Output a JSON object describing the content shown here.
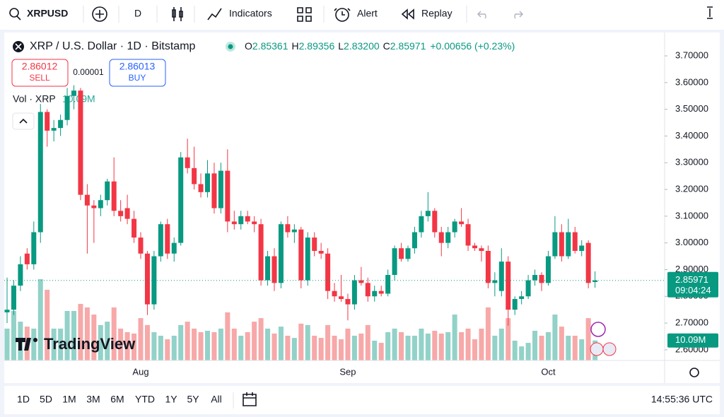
{
  "toolbar": {
    "symbol": "XRPUSD",
    "interval": "D",
    "indicators": "Indicators",
    "alert": "Alert",
    "replay": "Replay"
  },
  "legend": {
    "title": "XRP / U.S. Dollar · 1D · Bitstamp",
    "o_label": "O",
    "o": "2.85361",
    "h_label": "H",
    "h": "2.89356",
    "l_label": "L",
    "l": "2.83200",
    "c_label": "C",
    "c": "2.85971",
    "change": "+0.00656 (+0.23%)"
  },
  "trade": {
    "sell_price": "2.86012",
    "sell": "SELL",
    "spread": "0.00001",
    "buy_price": "2.86013",
    "buy": "BUY"
  },
  "volume_legend": {
    "label": "Vol · XRP"
  },
  "watermark": "TradingView",
  "ranges": [
    "1D",
    "5D",
    "1M",
    "3M",
    "6M",
    "YTD",
    "1Y",
    "5Y",
    "All"
  ],
  "clock": "14:55:36 UTC",
  "chart_data": {
    "type": "candlestick",
    "categories": [
      null,
      null,
      null,
      null,
      null,
      null,
      null,
      null,
      null,
      null,
      null,
      null,
      null,
      null,
      null,
      null,
      null,
      null,
      null,
      null,
      "Aug",
      null,
      null,
      null,
      null,
      null,
      null,
      null,
      null,
      null,
      null,
      null,
      null,
      null,
      null,
      null,
      null,
      null,
      null,
      null,
      null,
      null,
      null,
      null,
      null,
      null,
      null,
      null,
      null,
      null,
      null,
      "Sep",
      null,
      null,
      null,
      null,
      null,
      null,
      null,
      null,
      null,
      null,
      null,
      null,
      null,
      null,
      null,
      null,
      null,
      null,
      null,
      null,
      null,
      null,
      null,
      null,
      null,
      null,
      null,
      null,
      null,
      "Oct",
      null,
      null,
      null,
      null,
      null,
      null,
      null
    ],
    "open": [
      2.74,
      2.75,
      2.84,
      2.96,
      2.92,
      3.04,
      3.49,
      3.42,
      3.43,
      3.46,
      3.55,
      3.57,
      3.18,
      3.14,
      3.13,
      3.16,
      3.23,
      3.12,
      3.13,
      3.09,
      3.02,
      2.96,
      2.77,
      2.95,
      3.07,
      2.96,
      3.0,
      3.32,
      3.28,
      3.22,
      3.19,
      3.26,
      3.13,
      3.27,
      3.08,
      3.07,
      3.1,
      3.08,
      3.07,
      2.86,
      2.95,
      2.85,
      3.07,
      3.04,
      3.05,
      2.86,
      3.02,
      2.97,
      2.96,
      2.82,
      2.8,
      2.79,
      2.77,
      2.86,
      2.85,
      2.8,
      2.82,
      2.81,
      2.88,
      2.98,
      2.94,
      2.98,
      3.04,
      3.1,
      3.12,
      3.04,
      3.0,
      3.04,
      3.08,
      3.07,
      2.99,
      2.98,
      2.97,
      2.85,
      2.82,
      2.93,
      2.75,
      2.79,
      2.8,
      2.86,
      2.88,
      2.85,
      2.95,
      3.04,
      2.95,
      3.04,
      2.97,
      3.0,
      2.85361
    ],
    "high": [
      2.87,
      2.86,
      2.95,
      2.98,
      3.08,
      3.52,
      3.5,
      3.46,
      3.48,
      3.58,
      3.59,
      3.58,
      3.22,
      3.16,
      3.18,
      3.24,
      3.32,
      3.16,
      3.18,
      3.12,
      3.04,
      2.97,
      2.97,
      3.08,
      3.09,
      3.02,
      3.34,
      3.39,
      3.36,
      3.26,
      3.31,
      3.3,
      3.3,
      3.35,
      3.12,
      3.12,
      3.12,
      3.1,
      3.09,
      2.97,
      2.98,
      3.08,
      3.1,
      3.07,
      3.06,
      3.04,
      3.04,
      3.0,
      2.98,
      2.85,
      2.88,
      2.81,
      2.88,
      2.91,
      2.87,
      2.84,
      2.84,
      2.9,
      2.99,
      3.0,
      2.99,
      3.06,
      3.12,
      3.19,
      3.13,
      3.06,
      3.06,
      3.09,
      3.13,
      3.09,
      3.0,
      2.99,
      2.99,
      2.89,
      2.98,
      2.95,
      2.8,
      2.82,
      2.88,
      2.9,
      2.89,
      2.97,
      3.1,
      3.07,
      3.09,
      3.06,
      3.01,
      3.01,
      2.89356
    ],
    "low": [
      2.7,
      2.73,
      2.82,
      2.9,
      2.9,
      3.0,
      3.36,
      3.38,
      3.4,
      3.44,
      3.5,
      3.16,
      2.96,
      3.0,
      3.1,
      3.14,
      3.1,
      3.08,
      3.07,
      3.0,
      2.94,
      2.73,
      2.75,
      2.93,
      2.94,
      2.93,
      2.99,
      3.26,
      3.2,
      3.17,
      3.17,
      3.11,
      3.11,
      3.04,
      3.05,
      3.05,
      3.07,
      3.04,
      2.84,
      2.84,
      2.82,
      2.83,
      3.02,
      3.0,
      2.83,
      2.84,
      2.95,
      2.94,
      2.79,
      2.78,
      2.78,
      2.71,
      2.75,
      2.84,
      2.78,
      2.78,
      2.8,
      2.8,
      2.86,
      2.93,
      2.93,
      2.96,
      3.02,
      3.08,
      3.02,
      2.95,
      2.98,
      3.02,
      3.06,
      2.97,
      2.97,
      2.93,
      2.83,
      2.8,
      2.8,
      2.69,
      2.73,
      2.77,
      2.79,
      2.84,
      2.82,
      2.84,
      2.94,
      2.93,
      2.94,
      2.96,
      2.95,
      2.83,
      2.832
    ],
    "close": [
      2.75,
      2.84,
      2.92,
      2.92,
      3.04,
      3.49,
      3.42,
      3.43,
      3.46,
      3.55,
      3.57,
      3.18,
      3.14,
      3.13,
      3.16,
      3.23,
      3.12,
      3.1,
      3.09,
      3.02,
      2.96,
      2.77,
      2.95,
      3.07,
      2.96,
      3.0,
      3.32,
      3.28,
      3.22,
      3.19,
      3.26,
      3.13,
      3.27,
      3.08,
      3.07,
      3.1,
      3.08,
      3.07,
      2.86,
      2.95,
      2.85,
      3.07,
      3.04,
      3.05,
      2.86,
      3.02,
      2.97,
      2.96,
      2.82,
      2.8,
      2.79,
      2.77,
      2.86,
      2.85,
      2.8,
      2.82,
      2.81,
      2.88,
      2.98,
      2.94,
      2.98,
      3.04,
      3.1,
      3.12,
      3.04,
      3.0,
      3.04,
      3.08,
      3.07,
      2.99,
      2.98,
      2.97,
      2.85,
      2.86,
      2.93,
      2.75,
      2.79,
      2.8,
      2.86,
      2.88,
      2.85,
      2.95,
      3.04,
      2.95,
      3.04,
      2.97,
      2.99,
      2.85,
      2.85971
    ],
    "volume": [
      16.1,
      25,
      19.6,
      17.1,
      16.1,
      41.1,
      35.7,
      16.1,
      16.1,
      25,
      25,
      28.6,
      26.8,
      23.2,
      17.9,
      19.6,
      26.8,
      16.1,
      14.3,
      13.6,
      21.4,
      17.9,
      14.3,
      12.5,
      10.7,
      12.5,
      17.9,
      19.6,
      16.1,
      14.3,
      15,
      14.3,
      16.1,
      24.3,
      16.1,
      12.5,
      14.3,
      19.6,
      21.4,
      16.1,
      13.6,
      17.1,
      12.5,
      11.4,
      18.6,
      17.9,
      12.5,
      11.4,
      17.9,
      12.5,
      10.7,
      16.1,
      12.5,
      13.6,
      17.9,
      10,
      8.9,
      14.3,
      16.1,
      14.3,
      12.5,
      12.5,
      16.1,
      13.6,
      15,
      13.6,
      14.3,
      23.2,
      14.3,
      16.1,
      10.7,
      16.1,
      26.8,
      12.5,
      16.1,
      21.4,
      10,
      7.1,
      8.9,
      15,
      12.5,
      14.3,
      23.2,
      17.1,
      12.5,
      12.5,
      10.7,
      21.4,
      10.09
    ],
    "volume_label": "10.09M",
    "up_color": "#089981",
    "down_color": "#f23645",
    "volume_up_color": "#92d2c8",
    "volume_down_color": "#f7a8a8",
    "ylim": [
      2.56,
      3.79
    ],
    "yticks": [
      {
        "value": 2.6,
        "label": "2.60000"
      },
      {
        "value": 2.7,
        "label": "2.70000"
      },
      {
        "value": 2.8,
        "label": "2.80000"
      },
      {
        "value": 2.9,
        "label": "2.90000"
      },
      {
        "value": 3.0,
        "label": "3.00000"
      },
      {
        "value": 3.1,
        "label": "3.10000"
      },
      {
        "value": 3.2,
        "label": "3.20000"
      },
      {
        "value": 3.3,
        "label": "3.30000"
      },
      {
        "value": 3.4,
        "label": "3.40000"
      },
      {
        "value": 3.5,
        "label": "3.50000"
      },
      {
        "value": 3.6,
        "label": "3.60000"
      },
      {
        "value": 3.7,
        "label": "3.70000"
      }
    ],
    "countdown": "09:04:24"
  }
}
